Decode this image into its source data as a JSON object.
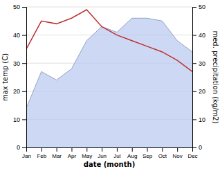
{
  "chart_data": {
    "type": "line",
    "categories": [
      "Jan",
      "Feb",
      "Mar",
      "Apr",
      "May",
      "Jun",
      "Jul",
      "Aug",
      "Sep",
      "Oct",
      "Nov",
      "Dec"
    ],
    "series": [
      {
        "type": "area",
        "color": "#b8c8f0",
        "values": [
          14,
          27,
          24,
          28,
          38,
          43,
          41,
          46,
          46,
          45,
          38,
          34
        ]
      },
      {
        "type": "line",
        "color": "#c03030",
        "axis": "y2",
        "values": [
          35,
          45,
          44,
          46,
          49,
          43,
          40,
          38,
          36,
          34,
          31,
          27
        ]
      }
    ],
    "xlabel": "date (month)",
    "ylabel": "max temp (C)",
    "y2label": "med. precipitation (kg/m2)",
    "ylim": [
      0,
      50
    ],
    "yticks": [
      0,
      10,
      20,
      30,
      40,
      50
    ],
    "y2lim": [
      0,
      50
    ],
    "y2ticks": [
      0,
      10,
      20,
      30,
      40,
      50
    ],
    "grid": true
  }
}
